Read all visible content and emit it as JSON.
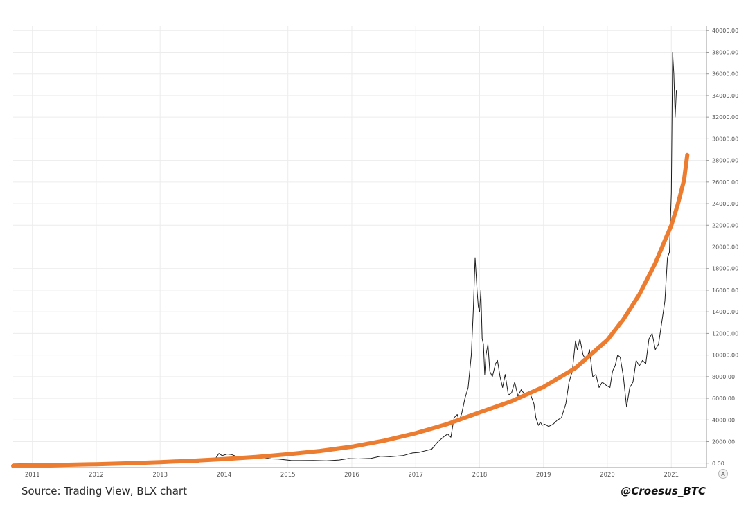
{
  "chart_data": {
    "type": "line",
    "title": "",
    "xlabel": "",
    "ylabel": "",
    "xlim": [
      2010.7,
      2021.55
    ],
    "ylim": [
      -400,
      40400
    ],
    "grid": true,
    "legend": "none",
    "x_ticks": [
      "2011",
      "2012",
      "2013",
      "2014",
      "2015",
      "2016",
      "2017",
      "2018",
      "2019",
      "2020",
      "2021"
    ],
    "y_ticks": [
      "0.00",
      "2000.00",
      "4000.00",
      "6000.00",
      "8000.00",
      "10000.00",
      "12000.00",
      "14000.00",
      "16000.00",
      "18000.00",
      "20000.00",
      "22000.00",
      "24000.00",
      "26000.00",
      "28000.00",
      "30000.00",
      "32000.00",
      "34000.00",
      "36000.00",
      "38000.00",
      "40000.00"
    ],
    "axis_button": "A",
    "series": [
      {
        "color": "#1a1a1a",
        "x": [
          2010.7,
          2011.0,
          2011.5,
          2012.0,
          2012.5,
          2013.0,
          2013.3,
          2013.6,
          2013.85,
          2013.92,
          2013.97,
          2014.05,
          2014.12,
          2014.2,
          2014.3,
          2014.4,
          2014.45,
          2014.55,
          2014.65,
          2014.75,
          2014.85,
          2014.95,
          2015.05,
          2015.2,
          2015.4,
          2015.6,
          2015.8,
          2015.95,
          2016.1,
          2016.3,
          2016.45,
          2016.6,
          2016.8,
          2016.95,
          2017.05,
          2017.15,
          2017.25,
          2017.35,
          2017.45,
          2017.5,
          2017.55,
          2017.6,
          2017.65,
          2017.68,
          2017.72,
          2017.77,
          2017.82,
          2017.87,
          2017.9,
          2017.93,
          2017.96,
          2017.98,
          2018.0,
          2018.02,
          2018.04,
          2018.06,
          2018.08,
          2018.1,
          2018.13,
          2018.16,
          2018.2,
          2018.25,
          2018.28,
          2018.32,
          2018.36,
          2018.4,
          2018.45,
          2018.5,
          2018.55,
          2018.6,
          2018.65,
          2018.7,
          2018.75,
          2018.8,
          2018.85,
          2018.88,
          2018.92,
          2018.95,
          2018.98,
          2019.02,
          2019.08,
          2019.15,
          2019.22,
          2019.28,
          2019.35,
          2019.4,
          2019.45,
          2019.5,
          2019.53,
          2019.57,
          2019.62,
          2019.67,
          2019.72,
          2019.77,
          2019.82,
          2019.87,
          2019.92,
          2019.98,
          2020.04,
          2020.08,
          2020.12,
          2020.16,
          2020.2,
          2020.25,
          2020.3,
          2020.35,
          2020.4,
          2020.45,
          2020.5,
          2020.55,
          2020.6,
          2020.65,
          2020.7,
          2020.75,
          2020.8,
          2020.85,
          2020.9,
          2020.94,
          2020.97,
          2021.0,
          2021.02,
          2021.04,
          2021.06,
          2021.08
        ],
        "y": [
          0,
          0,
          15,
          5,
          7,
          13,
          100,
          100,
          300,
          900,
          700,
          850,
          800,
          620,
          480,
          450,
          620,
          580,
          480,
          400,
          380,
          320,
          260,
          250,
          260,
          230,
          300,
          430,
          400,
          450,
          650,
          600,
          700,
          950,
          1000,
          1150,
          1300,
          2000,
          2500,
          2700,
          2400,
          4200,
          4500,
          3900,
          4600,
          6000,
          7000,
          10000,
          14000,
          19000,
          16000,
          14500,
          14000,
          16000,
          11500,
          11000,
          8200,
          10000,
          11000,
          8500,
          8000,
          9200,
          9500,
          8000,
          7000,
          8200,
          6300,
          6500,
          7500,
          6200,
          6800,
          6400,
          6500,
          6300,
          5500,
          4200,
          3500,
          3800,
          3500,
          3600,
          3400,
          3600,
          4000,
          4200,
          5500,
          7500,
          8500,
          11300,
          10500,
          11500,
          10000,
          9500,
          10500,
          8000,
          8200,
          7000,
          7500,
          7200,
          7000,
          8500,
          9000,
          10000,
          9800,
          8000,
          5200,
          7000,
          7500,
          9500,
          9000,
          9500,
          9200,
          11500,
          12000,
          10500,
          11000,
          13000,
          15000,
          19000,
          19500,
          25000,
          38000,
          36000,
          32000,
          34500
        ]
      },
      {
        "color": "#ec7c30",
        "x": [
          2010.7,
          2011.0,
          2011.5,
          2012.0,
          2012.5,
          2013.0,
          2013.5,
          2014.0,
          2014.5,
          2015.0,
          2015.5,
          2016.0,
          2016.5,
          2017.0,
          2017.5,
          2018.0,
          2018.5,
          2019.0,
          2019.5,
          2020.0,
          2020.25,
          2020.5,
          2020.75,
          2021.0,
          2021.1,
          2021.2,
          2021.25
        ],
        "y": [
          -250,
          -210,
          -150,
          -90,
          -10,
          100,
          230,
          380,
          580,
          830,
          1130,
          1530,
          2080,
          2780,
          3630,
          4700,
          5730,
          7050,
          8800,
          11400,
          13300,
          15600,
          18500,
          22000,
          23900,
          26200,
          28500
        ]
      }
    ]
  },
  "footer": {
    "source": "Source: Trading View, BLX chart",
    "author": "@Croesus_BTC"
  }
}
